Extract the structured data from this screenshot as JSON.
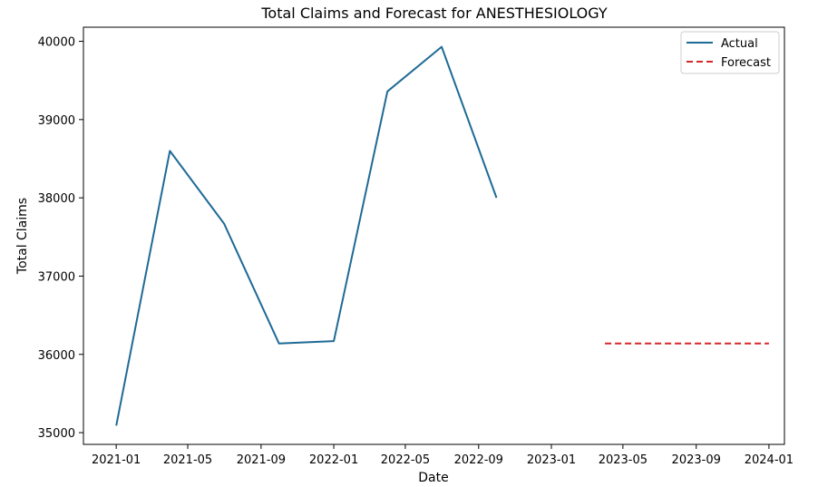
{
  "chart_data": {
    "type": "line",
    "title": "Total Claims and Forecast for ANESTHESIOLOGY",
    "xlabel": "Date",
    "ylabel": "Total Claims",
    "x_axis_type": "date",
    "xlim": [
      "2020-11-07",
      "2024-01-27"
    ],
    "ylim": [
      34850,
      40180
    ],
    "x_ticks": [
      "2021-01",
      "2021-05",
      "2021-09",
      "2022-01",
      "2022-05",
      "2022-09",
      "2023-01",
      "2023-05",
      "2023-09",
      "2024-01"
    ],
    "y_ticks": [
      35000,
      36000,
      37000,
      38000,
      39000,
      40000
    ],
    "grid": false,
    "legend_position": "top-right",
    "series": [
      {
        "name": "Actual",
        "style": "solid",
        "color": "#1f6a96",
        "points": [
          {
            "x": "2021-01-01",
            "y": 35090
          },
          {
            "x": "2021-04-01",
            "y": 38600
          },
          {
            "x": "2021-07-01",
            "y": 37670
          },
          {
            "x": "2021-10-01",
            "y": 36140
          },
          {
            "x": "2022-01-01",
            "y": 36170
          },
          {
            "x": "2022-04-01",
            "y": 39360
          },
          {
            "x": "2022-07-01",
            "y": 39930
          },
          {
            "x": "2022-10-01",
            "y": 38000
          }
        ]
      },
      {
        "name": "Forecast",
        "style": "dashed",
        "color": "#d62728",
        "points": [
          {
            "x": "2023-04-01",
            "y": 36140
          },
          {
            "x": "2023-07-01",
            "y": 36140
          },
          {
            "x": "2023-10-01",
            "y": 36140
          },
          {
            "x": "2024-01-01",
            "y": 36140
          }
        ]
      }
    ]
  }
}
